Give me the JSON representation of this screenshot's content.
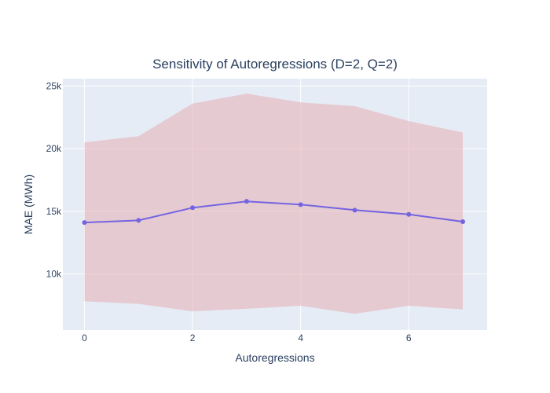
{
  "chart_data": {
    "type": "line",
    "title": "Sensitivity of Autoregressions (D=2, Q=2)",
    "xlabel": "Autoregressions",
    "ylabel": "MAE (MWh)",
    "xlim": [
      -0.4,
      7.45
    ],
    "ylim": [
      5500,
      25600
    ],
    "grid": true,
    "x_ticks": [
      0,
      2,
      4,
      6
    ],
    "x_tick_labels": [
      "0",
      "2",
      "4",
      "6"
    ],
    "y_ticks": [
      10000,
      15000,
      20000,
      25000
    ],
    "y_tick_labels": [
      "10k",
      "15k",
      "20k",
      "25k"
    ],
    "x": [
      0,
      1,
      2,
      3,
      4,
      5,
      6,
      7
    ],
    "series": [
      {
        "values": [
          14100,
          14270,
          15280,
          15790,
          15530,
          15090,
          14750,
          14170
        ],
        "color": "#7464e0"
      }
    ],
    "band": {
      "upper": [
        20500,
        21000,
        23600,
        24400,
        23700,
        23400,
        22200,
        21300
      ],
      "lower": [
        7800,
        7600,
        7000,
        7200,
        7450,
        6800,
        7450,
        7150
      ],
      "color": "#e6b8bf"
    },
    "colors": {
      "plot_background": "#e5ecf6",
      "grid": "#ffffff",
      "text": "#2a3f5f"
    }
  }
}
